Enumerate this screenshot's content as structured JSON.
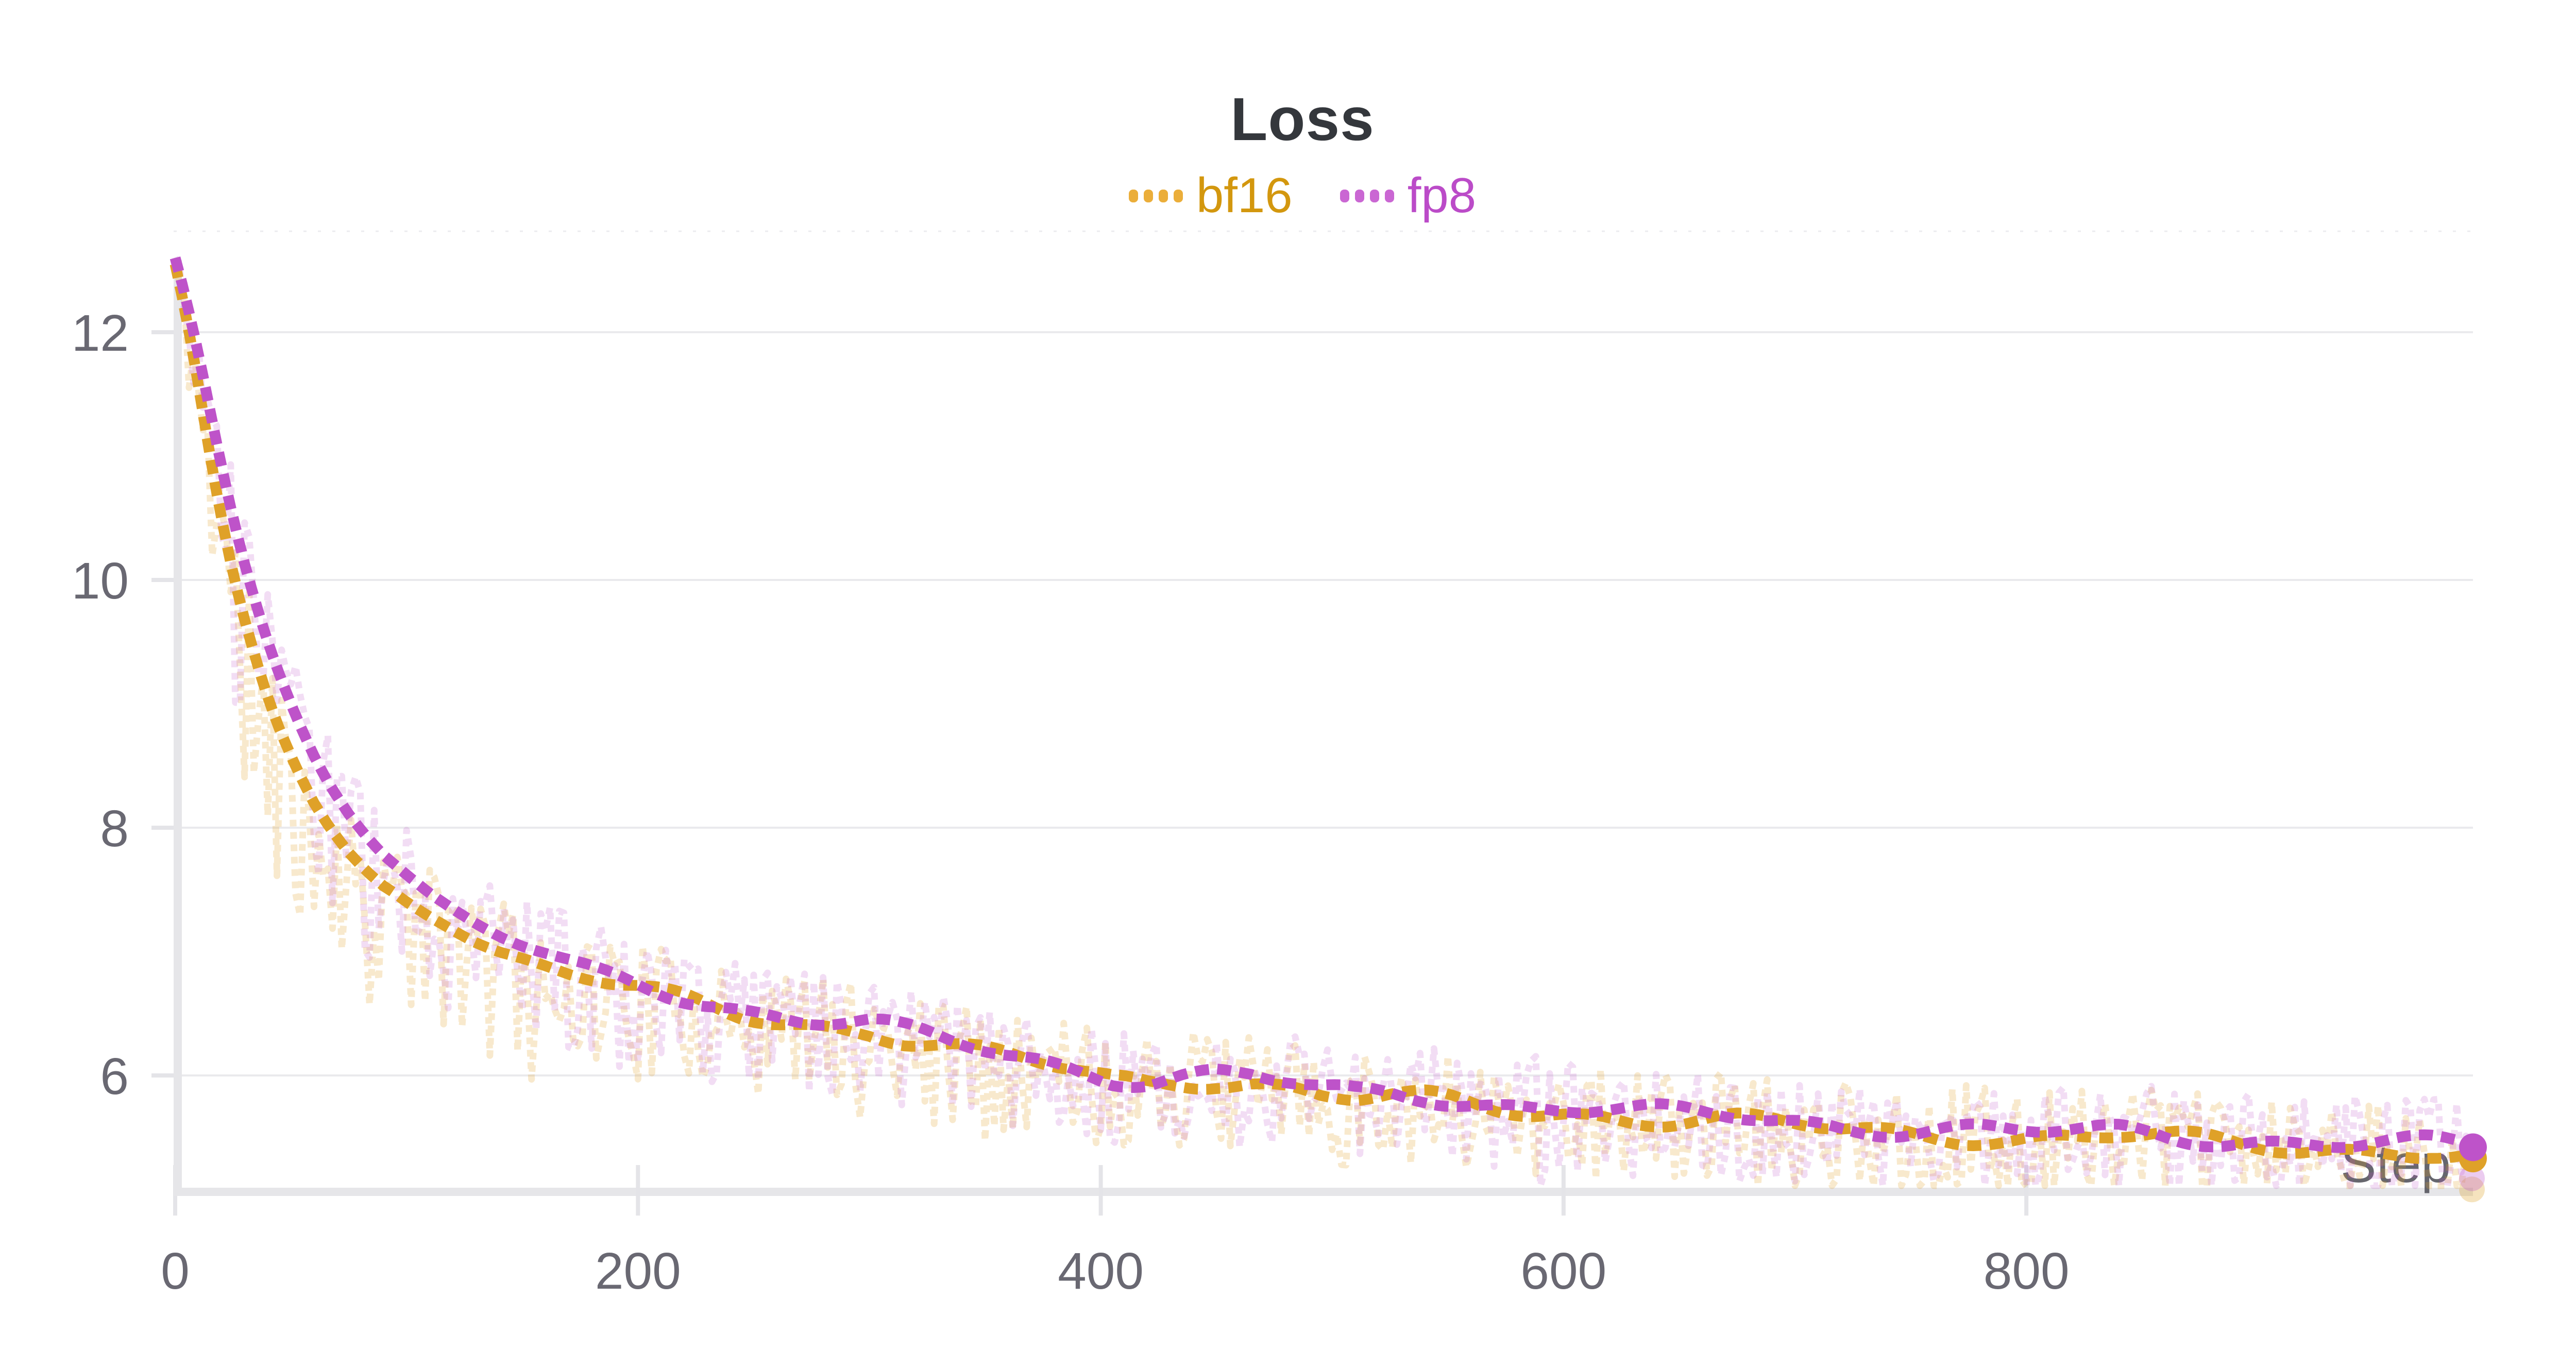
{
  "header": {
    "title": "Loss"
  },
  "legend": {
    "items": [
      {
        "label": "bf16",
        "text_color": "#D3970E",
        "swatch_color": "#EBAE3A",
        "dot_count": 4
      },
      {
        "label": "fp8",
        "text_color": "#BB4BC8",
        "swatch_color": "#CA67D3",
        "dot_count": 4
      }
    ]
  },
  "chart_data": {
    "type": "line",
    "title": "Loss",
    "xlabel": "Step",
    "ylabel": "",
    "x_ticks": [
      0,
      200,
      400,
      600,
      800
    ],
    "y_ticks": [
      12,
      10,
      8,
      6
    ],
    "x_range": [
      0,
      993
    ],
    "y_range": [
      5.09,
      12.77
    ],
    "grid": true,
    "legend_position": "top",
    "title_color": "#34373C",
    "tick_label_color": "#696872",
    "axis_label_color": "#5E5E66",
    "grid_color": "#EAEAED",
    "axis_color": "#E6E6E9",
    "tick_color": "#E4E4E8",
    "top_border_color": "#ECECEF",
    "series": [
      {
        "name": "bf16",
        "color": "#DFA128",
        "raw_color": "rgba(226,164,44,0.24)",
        "final_value": 5.33,
        "points": [
          [
            0,
            12.55
          ],
          [
            4,
            12.2
          ],
          [
            8,
            11.8
          ],
          [
            12,
            11.35
          ],
          [
            16,
            10.9
          ],
          [
            20,
            10.5
          ],
          [
            25,
            10.05
          ],
          [
            30,
            9.68
          ],
          [
            35,
            9.35
          ],
          [
            40,
            9.05
          ],
          [
            45,
            8.8
          ],
          [
            50,
            8.58
          ],
          [
            55,
            8.38
          ],
          [
            60,
            8.2
          ],
          [
            65,
            8.05
          ],
          [
            70,
            7.92
          ],
          [
            75,
            7.8
          ],
          [
            80,
            7.7
          ],
          [
            85,
            7.61
          ],
          [
            90,
            7.53
          ],
          [
            95,
            7.47
          ],
          [
            100,
            7.4
          ],
          [
            110,
            7.28
          ],
          [
            120,
            7.18
          ],
          [
            130,
            7.08
          ],
          [
            140,
            7.0
          ],
          [
            150,
            6.94
          ],
          [
            160,
            6.88
          ],
          [
            170,
            6.82
          ],
          [
            180,
            6.77
          ],
          [
            190,
            6.72
          ],
          [
            200,
            6.68
          ],
          [
            215,
            6.61
          ],
          [
            230,
            6.55
          ],
          [
            245,
            6.49
          ],
          [
            260,
            6.45
          ],
          [
            275,
            6.42
          ],
          [
            290,
            6.39
          ],
          [
            300,
            6.37
          ],
          [
            315,
            6.3
          ],
          [
            330,
            6.24
          ],
          [
            345,
            6.18
          ],
          [
            360,
            6.13
          ],
          [
            375,
            6.08
          ],
          [
            390,
            6.03
          ],
          [
            405,
            5.97
          ],
          [
            420,
            5.95
          ],
          [
            435,
            5.97
          ],
          [
            450,
            5.98
          ],
          [
            465,
            5.96
          ],
          [
            480,
            5.9
          ],
          [
            495,
            5.83
          ],
          [
            510,
            5.8
          ],
          [
            525,
            5.81
          ],
          [
            540,
            5.8
          ],
          [
            555,
            5.77
          ],
          [
            570,
            5.74
          ],
          [
            585,
            5.72
          ],
          [
            600,
            5.71
          ],
          [
            615,
            5.69
          ],
          [
            630,
            5.66
          ],
          [
            645,
            5.64
          ],
          [
            660,
            5.63
          ],
          [
            675,
            5.62
          ],
          [
            690,
            5.6
          ],
          [
            705,
            5.58
          ],
          [
            720,
            5.56
          ],
          [
            735,
            5.55
          ],
          [
            750,
            5.54
          ],
          [
            765,
            5.53
          ],
          [
            780,
            5.52
          ],
          [
            795,
            5.5
          ],
          [
            810,
            5.49
          ],
          [
            825,
            5.49
          ],
          [
            840,
            5.5
          ],
          [
            855,
            5.49
          ],
          [
            870,
            5.47
          ],
          [
            885,
            5.45
          ],
          [
            900,
            5.44
          ],
          [
            915,
            5.43
          ],
          [
            930,
            5.42
          ],
          [
            945,
            5.41
          ],
          [
            960,
            5.4
          ],
          [
            975,
            5.38
          ],
          [
            985,
            5.35
          ],
          [
            993,
            5.33
          ]
        ]
      },
      {
        "name": "fp8",
        "color": "#BE53C9",
        "raw_color": "rgba(190,83,201,0.20)",
        "final_value": 5.42,
        "points": [
          [
            0,
            12.6
          ],
          [
            4,
            12.32
          ],
          [
            8,
            12.0
          ],
          [
            12,
            11.65
          ],
          [
            16,
            11.28
          ],
          [
            20,
            10.92
          ],
          [
            25,
            10.5
          ],
          [
            30,
            10.13
          ],
          [
            35,
            9.8
          ],
          [
            40,
            9.5
          ],
          [
            45,
            9.24
          ],
          [
            50,
            9.0
          ],
          [
            55,
            8.78
          ],
          [
            60,
            8.58
          ],
          [
            65,
            8.4
          ],
          [
            70,
            8.25
          ],
          [
            75,
            8.11
          ],
          [
            80,
            7.99
          ],
          [
            85,
            7.88
          ],
          [
            90,
            7.78
          ],
          [
            95,
            7.7
          ],
          [
            100,
            7.62
          ],
          [
            110,
            7.47
          ],
          [
            120,
            7.34
          ],
          [
            130,
            7.22
          ],
          [
            140,
            7.12
          ],
          [
            150,
            7.04
          ],
          [
            160,
            6.97
          ],
          [
            170,
            6.9
          ],
          [
            180,
            6.84
          ],
          [
            190,
            6.79
          ],
          [
            200,
            6.74
          ],
          [
            215,
            6.67
          ],
          [
            230,
            6.6
          ],
          [
            245,
            6.54
          ],
          [
            260,
            6.5
          ],
          [
            275,
            6.46
          ],
          [
            290,
            6.43
          ],
          [
            300,
            6.41
          ],
          [
            315,
            6.34
          ],
          [
            330,
            6.28
          ],
          [
            345,
            6.22
          ],
          [
            360,
            6.16
          ],
          [
            375,
            6.11
          ],
          [
            390,
            6.06
          ],
          [
            405,
            6.0
          ],
          [
            420,
            5.98
          ],
          [
            435,
            6.0
          ],
          [
            450,
            6.01
          ],
          [
            465,
            5.99
          ],
          [
            480,
            5.93
          ],
          [
            495,
            5.87
          ],
          [
            510,
            5.84
          ],
          [
            525,
            5.85
          ],
          [
            540,
            5.84
          ],
          [
            555,
            5.81
          ],
          [
            570,
            5.78
          ],
          [
            585,
            5.76
          ],
          [
            600,
            5.75
          ],
          [
            615,
            5.73
          ],
          [
            630,
            5.7
          ],
          [
            645,
            5.68
          ],
          [
            660,
            5.67
          ],
          [
            675,
            5.66
          ],
          [
            690,
            5.64
          ],
          [
            705,
            5.62
          ],
          [
            720,
            5.6
          ],
          [
            735,
            5.59
          ],
          [
            750,
            5.58
          ],
          [
            765,
            5.57
          ],
          [
            780,
            5.56
          ],
          [
            795,
            5.54
          ],
          [
            810,
            5.53
          ],
          [
            825,
            5.53
          ],
          [
            840,
            5.54
          ],
          [
            855,
            5.53
          ],
          [
            870,
            5.51
          ],
          [
            885,
            5.49
          ],
          [
            900,
            5.48
          ],
          [
            915,
            5.47
          ],
          [
            930,
            5.46
          ],
          [
            945,
            5.45
          ],
          [
            960,
            5.44
          ],
          [
            975,
            5.43
          ],
          [
            985,
            5.42
          ],
          [
            993,
            5.42
          ]
        ]
      }
    ],
    "raw_overlay": {
      "sample_step": 2,
      "up": 0.4,
      "down_base": 0.52,
      "down_extra": 1.15,
      "down_decay": 115,
      "ramp": 26,
      "seeds": [
        11,
        97
      ],
      "clip_low": 5.11,
      "clip_high": 12.72
    },
    "endpoint_markers": {
      "radius": 27,
      "solid": [
        {
          "series": "bf16",
          "x": 993,
          "y": 5.33
        },
        {
          "series": "fp8",
          "x": 993,
          "y": 5.42
        }
      ],
      "faint": [
        {
          "series": "bf16",
          "x": 993,
          "y": 5.08
        },
        {
          "series": "fp8",
          "x": 993,
          "y": 5.17
        }
      ]
    }
  }
}
